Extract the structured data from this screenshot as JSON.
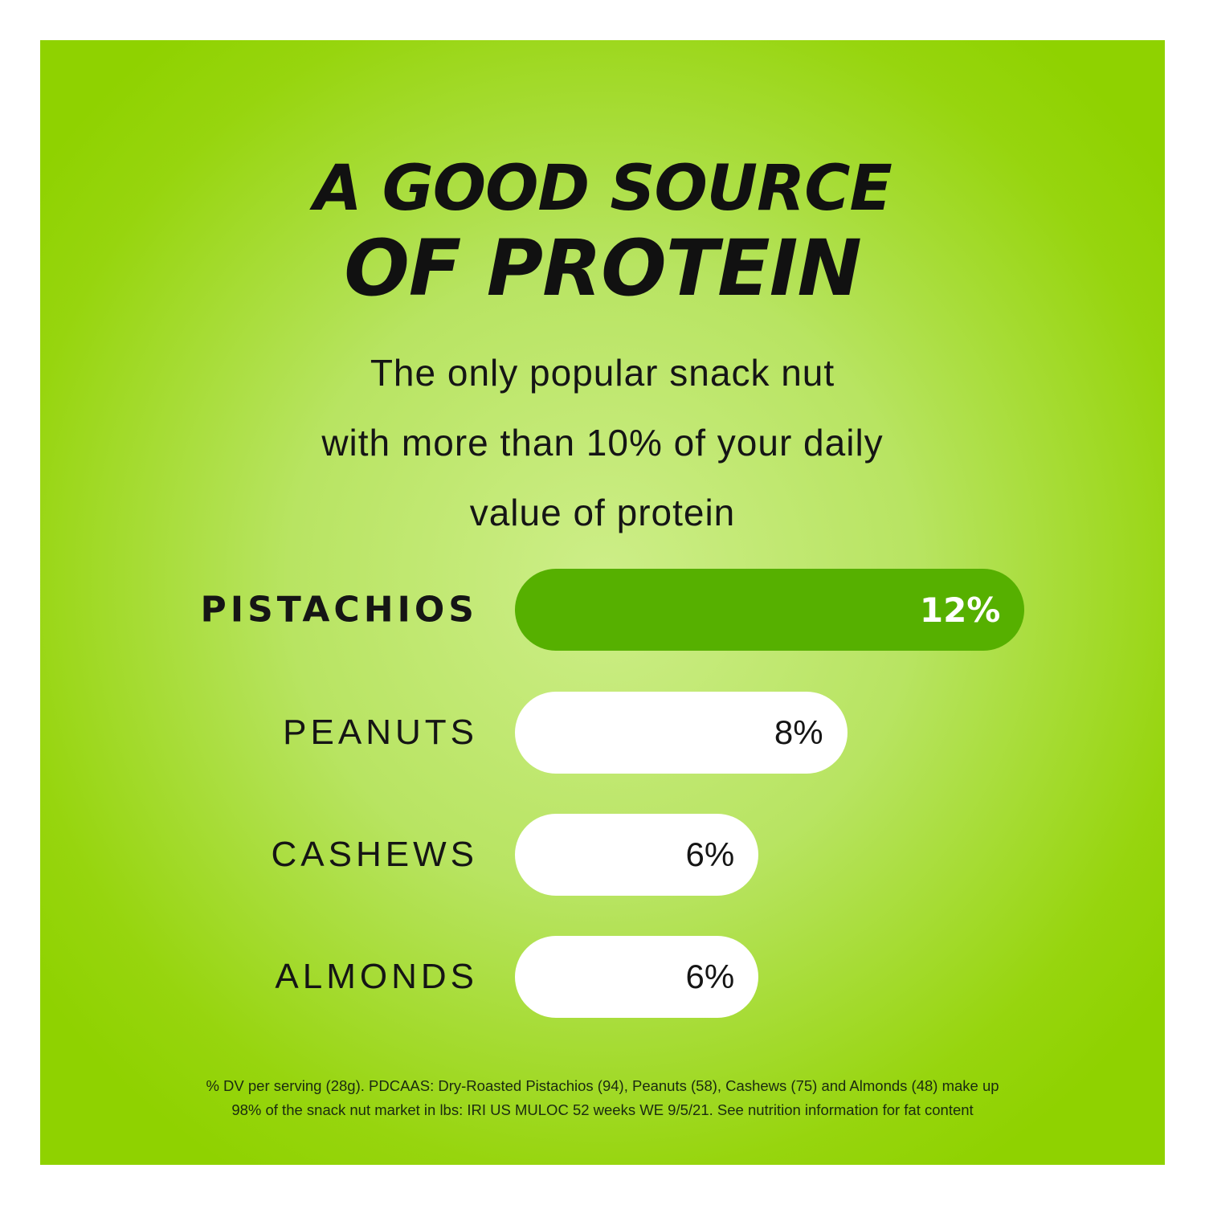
{
  "chart_data": {
    "type": "bar",
    "orientation": "horizontal",
    "title": "A GOOD SOURCE OF PROTEIN",
    "title_lines": [
      "A GOOD SOURCE",
      "OF PROTEIN"
    ],
    "subtitle_lines": [
      "The only popular snack nut",
      "with more than 10% of your daily",
      "value of protein"
    ],
    "categories": [
      "PISTACHIOS",
      "PEANUTS",
      "CASHEWS",
      "ALMONDS"
    ],
    "values": [
      12,
      8,
      6,
      6
    ],
    "data_labels": [
      "12%",
      "8%",
      "6%",
      "6%"
    ],
    "unit": "%",
    "highlight": "PISTACHIOS",
    "grid": false,
    "colors": {
      "highlight_bar": "#56b000",
      "bar": "#ffffff",
      "background": "#9ad60f"
    },
    "footnote_lines": [
      "% DV per serving (28g). PDCAAS: Dry-Roasted Pistachios (94), Peanuts (58), Cashews (75) and Almonds (48) make up",
      "98% of the snack nut market in lbs: IRI US MULOC 52 weeks WE 9/5/21. See nutrition information for fat content"
    ]
  }
}
